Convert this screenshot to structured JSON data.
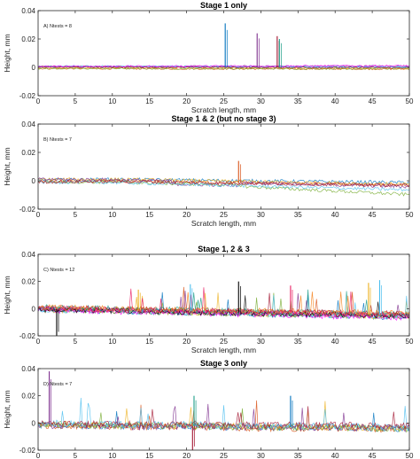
{
  "chart_data": [
    {
      "type": "line",
      "title": "Stage 1 only",
      "annotation": "A) Ntests = 8",
      "xlabel": "Scratch length, mm",
      "ylabel": "Height, mm",
      "xlim": [
        0,
        50
      ],
      "ylim": [
        -0.02,
        0.04
      ],
      "xticks": [
        0,
        5,
        10,
        15,
        20,
        25,
        30,
        35,
        40,
        45,
        50
      ],
      "yticks": [
        -0.02,
        0,
        0.02,
        0.04
      ],
      "ytick_labels": [
        "-0.02",
        "0",
        "0.02",
        "0.04"
      ],
      "grid": false,
      "ntests": 8,
      "baseline": [
        [
          0,
          0.0
        ],
        [
          10,
          0.0
        ],
        [
          20,
          0.0
        ],
        [
          30,
          0.0
        ],
        [
          40,
          0.0
        ],
        [
          50,
          0.0
        ]
      ],
      "spikes": [
        {
          "x": 25.2,
          "y": 0.031
        },
        {
          "x": 29.5,
          "y": 0.024
        },
        {
          "x": 32.2,
          "y": 0.022
        },
        {
          "x": 32.5,
          "y": 0.02
        }
      ]
    },
    {
      "type": "line",
      "title": "Stage 1 & 2 (but no stage 3)",
      "annotation": "B) Ntests = 7",
      "xlabel": "Scratch length, mm",
      "ylabel": "Height, mm",
      "xlim": [
        0,
        50
      ],
      "ylim": [
        -0.02,
        0.04
      ],
      "xticks": [
        0,
        5,
        10,
        15,
        20,
        25,
        30,
        35,
        40,
        45,
        50
      ],
      "yticks": [
        -0.02,
        0,
        0.02,
        0.04
      ],
      "ytick_labels": [
        "-0.02",
        "0",
        "0.02",
        "0.04"
      ],
      "grid": false,
      "ntests": 7,
      "baseline": [
        [
          0,
          0.0
        ],
        [
          10,
          0.0
        ],
        [
          20,
          -0.001
        ],
        [
          30,
          -0.002
        ],
        [
          40,
          -0.003
        ],
        [
          50,
          -0.004
        ]
      ],
      "spikes": [
        {
          "x": 27.0,
          "y": 0.014
        }
      ]
    },
    {
      "type": "line",
      "title": "Stage 1, 2 & 3",
      "annotation": "C) Ntests = 12",
      "xlabel": "Scratch length, mm",
      "ylabel": "Height, mm",
      "xlim": [
        0,
        50
      ],
      "ylim": [
        -0.02,
        0.04
      ],
      "xticks": [
        0,
        5,
        10,
        15,
        20,
        25,
        30,
        35,
        40,
        45,
        50
      ],
      "yticks": [
        -0.02,
        0,
        0.02,
        0.04
      ],
      "ytick_labels": [
        "-0.02",
        "0",
        "0.02",
        "0.04"
      ],
      "grid": false,
      "ntests": 12,
      "baseline": [
        [
          0,
          0.0
        ],
        [
          10,
          -0.001
        ],
        [
          20,
          -0.002
        ],
        [
          30,
          -0.003
        ],
        [
          40,
          -0.004
        ],
        [
          50,
          -0.005
        ]
      ],
      "spikes": [
        {
          "x": 13.5,
          "y": 0.014
        },
        {
          "x": 20.5,
          "y": 0.018
        },
        {
          "x": 27.0,
          "y": 0.02
        },
        {
          "x": 34.0,
          "y": 0.017
        },
        {
          "x": 44.5,
          "y": 0.019
        },
        {
          "x": 46.0,
          "y": 0.021
        },
        {
          "x": 2.5,
          "y": -0.02
        }
      ]
    },
    {
      "type": "line",
      "title": "Stage 3 only",
      "annotation": "D) Ntests = 7",
      "xlabel": "",
      "ylabel": "Height, mm",
      "xlim": [
        0,
        50
      ],
      "ylim": [
        -0.02,
        0.04
      ],
      "xticks": [
        0,
        5,
        10,
        15,
        20,
        25,
        30,
        35,
        40,
        45,
        50
      ],
      "yticks": [
        -0.02,
        0,
        0.02,
        0.04
      ],
      "ytick_labels": [
        "-0.02",
        "0",
        "0.02",
        "0.04"
      ],
      "grid": false,
      "ntests": 7,
      "baseline": [
        [
          0,
          -0.001
        ],
        [
          10,
          -0.002
        ],
        [
          20,
          -0.002
        ],
        [
          30,
          -0.003
        ],
        [
          40,
          -0.003
        ],
        [
          50,
          -0.004
        ]
      ],
      "spikes": [
        {
          "x": 1.5,
          "y": 0.038
        },
        {
          "x": 20.8,
          "y": -0.02
        },
        {
          "x": 21.0,
          "y": 0.02
        },
        {
          "x": 34.0,
          "y": 0.02
        }
      ]
    }
  ],
  "series_colors": [
    "#0072bd",
    "#d95319",
    "#edb120",
    "#7e2f8e",
    "#77ac30",
    "#4dbeee",
    "#a2142f",
    "#ff00ff",
    "#000000",
    "#1f9e89",
    "#f57f17",
    "#e91e63"
  ],
  "axis_color": "#262626"
}
